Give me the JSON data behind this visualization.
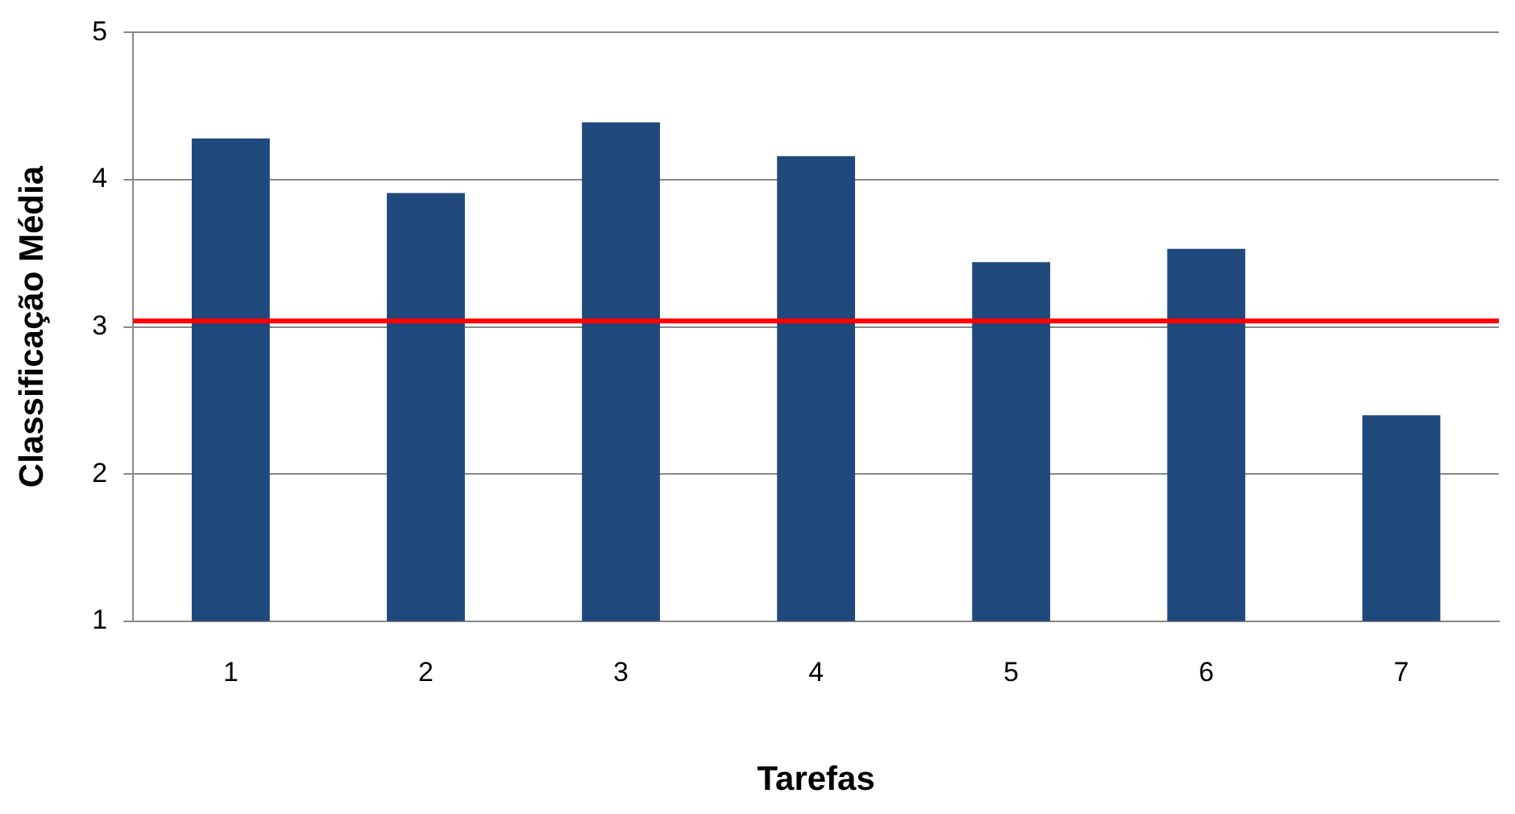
{
  "chart_data": {
    "type": "bar",
    "xlabel": "Tarefas",
    "ylabel": "Classificação Média",
    "categories": [
      "1",
      "2",
      "3",
      "4",
      "5",
      "6",
      "7"
    ],
    "values": [
      4.28,
      3.91,
      4.39,
      4.16,
      3.44,
      3.53,
      2.4
    ],
    "color": "#1f497d",
    "ylim": [
      1,
      5
    ],
    "yticks": [
      1,
      2,
      3,
      4,
      5
    ],
    "grid": "y",
    "legend": false,
    "ref_lines": [
      {
        "axis": "y",
        "value": 3.04,
        "color": "#ff0000"
      }
    ]
  }
}
